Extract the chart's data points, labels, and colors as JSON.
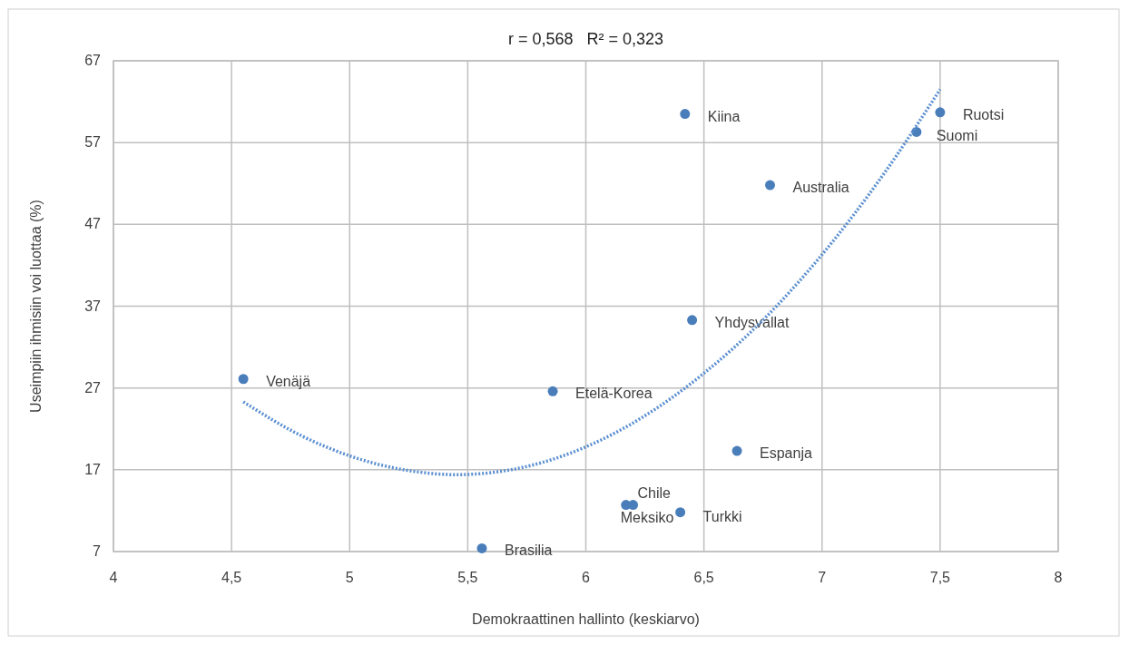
{
  "chart_data": {
    "type": "scatter",
    "title": "r = 0,568   R² = 0,323",
    "xlabel": "Demokraattinen hallinto (keskiarvo)",
    "ylabel": "Useimpiin ihmisiin voi luottaa  (%)",
    "xlim": [
      4,
      8
    ],
    "xticks": [
      4,
      {
        "value": 4.5,
        "label": "4,5"
      },
      5,
      {
        "value": 5.5,
        "label": "5,5"
      },
      6,
      {
        "value": 6.5,
        "label": "6,5"
      },
      7,
      {
        "value": 7.5,
        "label": "7,5"
      },
      8
    ],
    "ylim": [
      7,
      67
    ],
    "yticks": [
      7,
      17,
      27,
      37,
      47,
      57,
      67
    ],
    "grid": true,
    "marker": "circle",
    "series": [
      {
        "name": "Venäjä",
        "color": "#4a7ebb",
        "x": [
          4.55
        ],
        "values": [
          28.1
        ]
      },
      {
        "name": "Etelä-Korea",
        "color": "#4a7ebb",
        "x": [
          5.86
        ],
        "values": [
          26.6
        ]
      },
      {
        "name": "Brasilia",
        "color": "#4a7ebb",
        "x": [
          5.56
        ],
        "values": [
          7.4
        ]
      },
      {
        "name": "Meksiko",
        "color": "#4a7ebb",
        "x": [
          6.17
        ],
        "values": [
          12.7
        ]
      },
      {
        "name": "Chile",
        "color": "#4a7ebb",
        "x": [
          6.2
        ],
        "values": [
          12.7
        ]
      },
      {
        "name": "Turkki",
        "color": "#4a7ebb",
        "x": [
          6.4
        ],
        "values": [
          11.8
        ]
      },
      {
        "name": "Yhdysvallat",
        "color": "#4a7ebb",
        "x": [
          6.45
        ],
        "values": [
          35.3
        ]
      },
      {
        "name": "Kiina",
        "color": "#4a7ebb",
        "x": [
          6.42
        ],
        "values": [
          60.5
        ]
      },
      {
        "name": "Espanja",
        "color": "#4a7ebb",
        "x": [
          6.64
        ],
        "values": [
          19.3
        ]
      },
      {
        "name": "Australia",
        "color": "#4a7ebb",
        "x": [
          6.78
        ],
        "values": [
          51.8
        ]
      },
      {
        "name": "Suomi",
        "color": "#4a7ebb",
        "x": [
          7.4
        ],
        "values": [
          58.3
        ]
      },
      {
        "name": "Ruotsi",
        "color": "#4a7ebb",
        "x": [
          7.5
        ],
        "values": [
          60.7
        ]
      },
      {
        "type": "line",
        "color": "#5b8fd0",
        "line_style": "dotted",
        "marker": "none",
        "x": [
          4.55,
          4.8,
          5,
          5.25,
          5.45,
          5.75,
          6,
          6.25,
          6.5,
          6.75,
          7,
          7.25,
          7.5
        ],
        "values": [
          25.3,
          21.1,
          18.7,
          16.9,
          16.4,
          17.4,
          19.8,
          23.6,
          28.8,
          35.3,
          43.3,
          52.7,
          63.5
        ]
      }
    ]
  }
}
